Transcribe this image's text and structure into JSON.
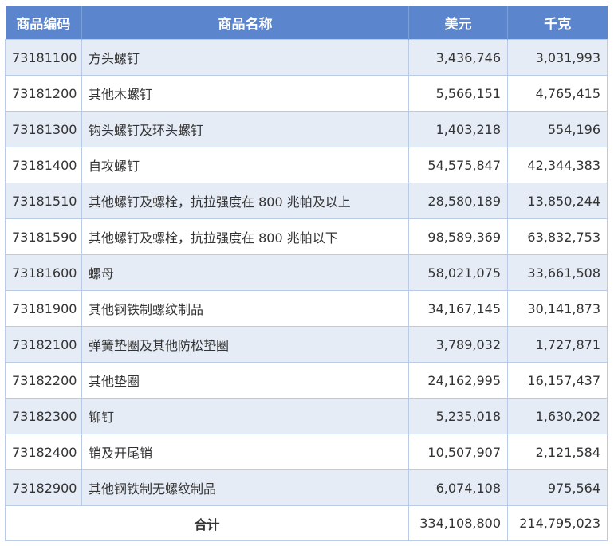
{
  "headers": [
    "商品编码",
    "商品名称",
    "美元",
    "千克"
  ],
  "rows": [
    {
      "code": "73181100",
      "name": "方头螺钉",
      "usd": "3,436,746",
      "kg": "3,031,993"
    },
    {
      "code": "73181200",
      "name": "其他木螺钉",
      "usd": "5,566,151",
      "kg": "4,765,415"
    },
    {
      "code": "73181300",
      "name": "钩头螺钉及环头螺钉",
      "usd": "1,403,218",
      "kg": "554,196"
    },
    {
      "code": "73181400",
      "name": "自攻螺钉",
      "usd": "54,575,847",
      "kg": "42,344,383"
    },
    {
      "code": "73181510",
      "name": "其他螺钉及螺栓，抗拉强度在 800 兆帕及以上",
      "usd": "28,580,189",
      "kg": "13,850,244"
    },
    {
      "code": "73181590",
      "name": "其他螺钉及螺栓，抗拉强度在 800 兆帕以下",
      "usd": "98,589,369",
      "kg": "63,832,753"
    },
    {
      "code": "73181600",
      "name": "螺母",
      "usd": "58,021,075",
      "kg": "33,661,508"
    },
    {
      "code": "73181900",
      "name": "其他钢铁制螺纹制品",
      "usd": "34,167,145",
      "kg": "30,141,873"
    },
    {
      "code": "73182100",
      "name": "弹簧垫圈及其他防松垫圈",
      "usd": "3,789,032",
      "kg": "1,727,871"
    },
    {
      "code": "73182200",
      "name": "其他垫圈",
      "usd": "24,162,995",
      "kg": "16,157,437"
    },
    {
      "code": "73182300",
      "name": "铆钉",
      "usd": "5,235,018",
      "kg": "1,630,202"
    },
    {
      "code": "73182400",
      "name": "销及开尾销",
      "usd": "10,507,907",
      "kg": "2,121,584"
    },
    {
      "code": "73182900",
      "name": "其他钢铁制无螺纹制品",
      "usd": "6,074,108",
      "kg": "975,564"
    }
  ],
  "total": {
    "label": "合计",
    "usd": "334,108,800",
    "kg": "214,795,023"
  },
  "colors": {
    "header_bg": "#5b86cd",
    "alt_row_bg": "#e5ecf6",
    "border": "#b9cbe6"
  }
}
